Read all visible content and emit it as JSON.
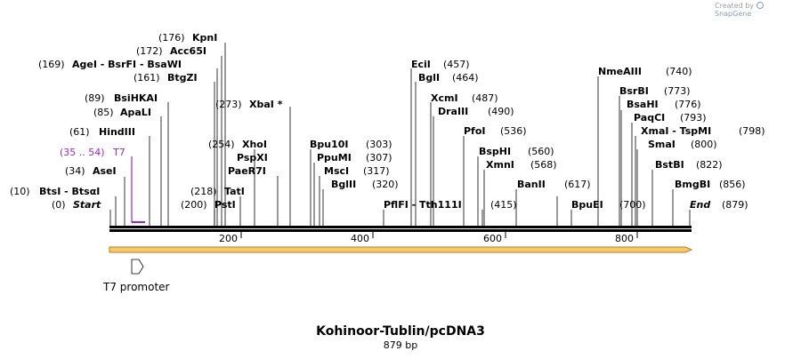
{
  "credit": {
    "prefix": "Created by",
    "brand": "SnapGene"
  },
  "map": {
    "name": "Kohinoor-Tublin/pcDNA3",
    "length_label": "879 bp",
    "start_label": "Start",
    "end_label": "End",
    "start_pos": "(0)",
    "end_pos": "(879)",
    "seq_length": 879
  },
  "ruler": [
    {
      "pos": 200,
      "label": "200"
    },
    {
      "pos": 400,
      "label": "400"
    },
    {
      "pos": 600,
      "label": "600"
    },
    {
      "pos": 800,
      "label": "800"
    }
  ],
  "sites": [
    {
      "pos": 10,
      "text": "BtsI - BtsαI",
      "num": "(10)"
    },
    {
      "pos": 34,
      "text": "AseI",
      "num": "(34)"
    },
    {
      "pos": 61,
      "text": "HindIII",
      "num": "(61)"
    },
    {
      "pos": 85,
      "text": "ApaLI",
      "num": "(85)"
    },
    {
      "pos": 89,
      "text": "BsiHKAI",
      "num": "(89)"
    },
    {
      "pos": 161,
      "text": "BtgZI",
      "num": "(161)"
    },
    {
      "pos": 169,
      "text": "AgeI - BsrFI - BsaWI",
      "num": "(169)"
    },
    {
      "pos": 172,
      "text": "Acc65I",
      "num": "(172)"
    },
    {
      "pos": 176,
      "text": "KpnI",
      "num": "(176)"
    },
    {
      "pos": 200,
      "text": "PstI",
      "num": "(200)"
    },
    {
      "pos": 218,
      "text": "TatI",
      "num": "(218)"
    },
    {
      "pos": 254,
      "text": "XhoI",
      "num": "(254)"
    },
    {
      "pos": 254,
      "text": "PspXI",
      "num": ""
    },
    {
      "pos": 254,
      "text": "PaeR7I",
      "num": ""
    },
    {
      "pos": 273,
      "text": "XbaI *",
      "num": "(273)"
    },
    {
      "pos": 303,
      "text": "Bpu10I",
      "num": "(303)"
    },
    {
      "pos": 307,
      "text": "PpuMI",
      "num": "(307)"
    },
    {
      "pos": 317,
      "text": "MscI",
      "num": "(317)"
    },
    {
      "pos": 320,
      "text": "BglII",
      "num": "(320)"
    },
    {
      "pos": 415,
      "text": "PflFI - Tth111I",
      "num": "(415)"
    },
    {
      "pos": 457,
      "text": "EciI",
      "num": "(457)"
    },
    {
      "pos": 464,
      "text": "BglI",
      "num": "(464)"
    },
    {
      "pos": 487,
      "text": "XcmI",
      "num": "(487)"
    },
    {
      "pos": 490,
      "text": "DraIII",
      "num": "(490)"
    },
    {
      "pos": 536,
      "text": "PfoI",
      "num": "(536)"
    },
    {
      "pos": 560,
      "text": "BspHI",
      "num": "(560)"
    },
    {
      "pos": 568,
      "text": "XmnI",
      "num": "(568)"
    },
    {
      "pos": 617,
      "text": "BanII",
      "num": "(617)"
    },
    {
      "pos": 700,
      "text": "BpuEI",
      "num": "(700)"
    },
    {
      "pos": 740,
      "text": "NmeAIII",
      "num": "(740)"
    },
    {
      "pos": 773,
      "text": "BsrBI",
      "num": "(773)"
    },
    {
      "pos": 776,
      "text": "BsaHI",
      "num": "(776)"
    },
    {
      "pos": 793,
      "text": "PaqCI",
      "num": "(793)"
    },
    {
      "pos": 798,
      "text": "XmaI - TspMI",
      "num": "(798)"
    },
    {
      "pos": 800,
      "text": "SmaI",
      "num": "(800)"
    },
    {
      "pos": 822,
      "text": "BstBI",
      "num": "(822)"
    },
    {
      "pos": 856,
      "text": "BmgBI",
      "num": "(856)"
    }
  ],
  "primer": {
    "name": "T7",
    "range": "(35 .. 54)",
    "start": 35,
    "end": 54
  },
  "features": [
    {
      "name": "T7 promoter",
      "start": 35,
      "end": 54
    }
  ],
  "colors": {
    "primer": "#9c27c9",
    "feature_fill": "#f5c96e",
    "feature_stroke": "#c27a1b",
    "backbone": "#000000"
  }
}
